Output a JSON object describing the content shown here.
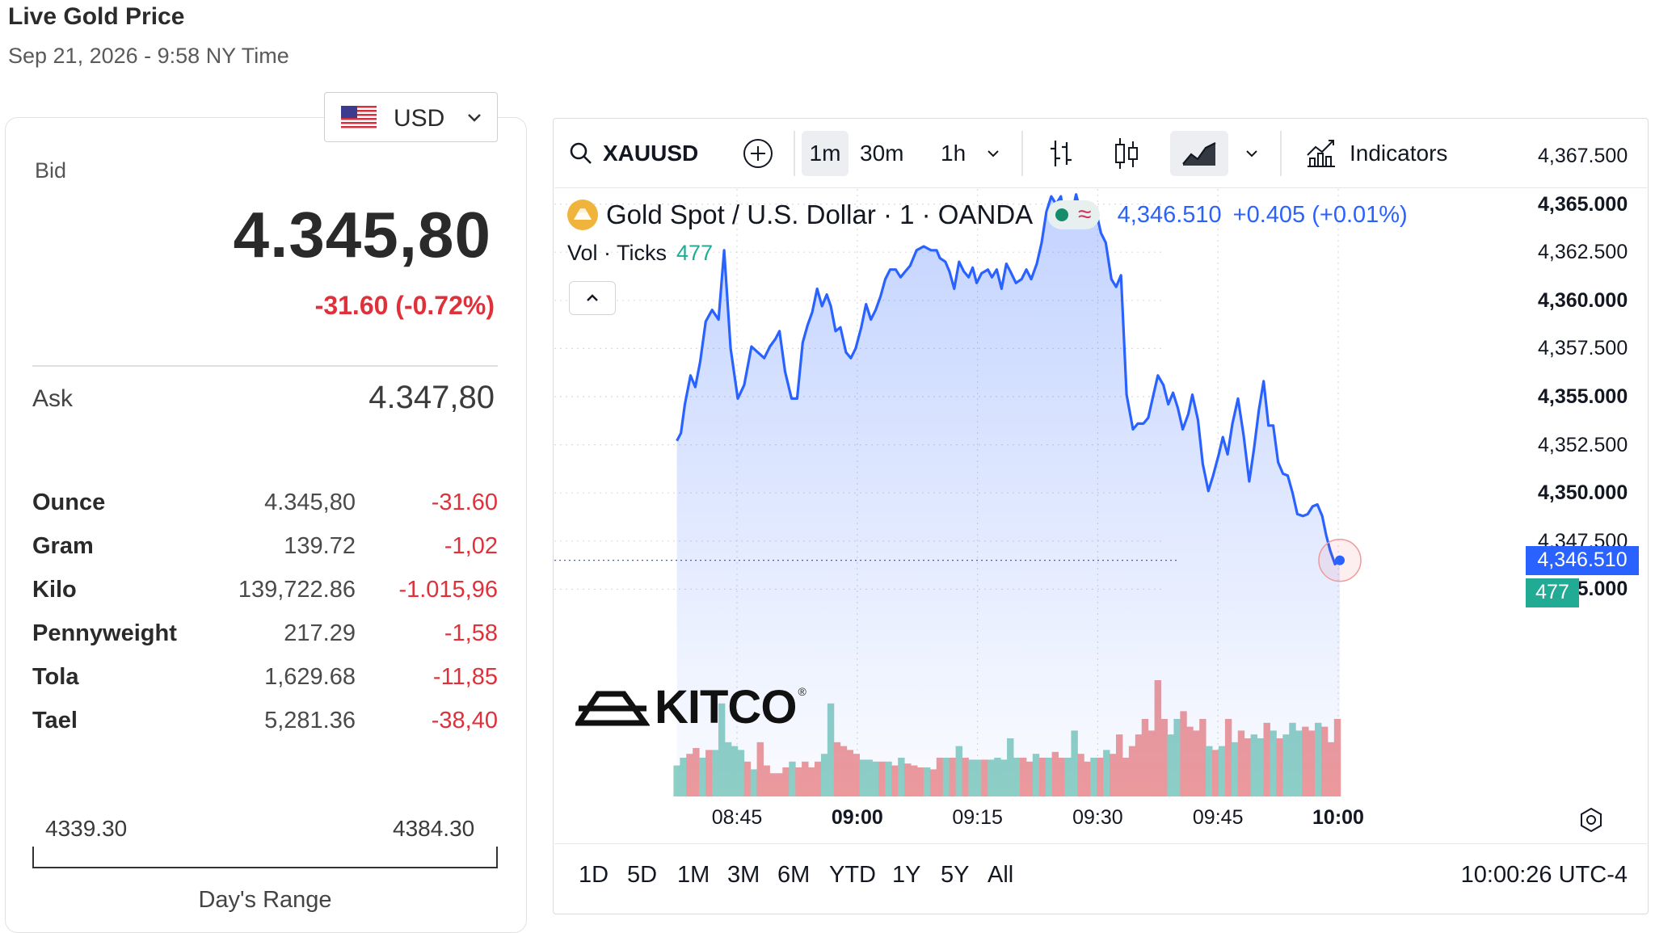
{
  "header": {
    "title": "Live Gold Price",
    "subtitle": "Sep 21, 2026 - 9:58 NY Time"
  },
  "currency": {
    "selected": "USD",
    "flag_icon": "us-flag-icon"
  },
  "quote": {
    "bid_label": "Bid",
    "bid_value": "4.345,80",
    "bid_change": "-31.60 (-0.72%)",
    "ask_label": "Ask",
    "ask_value": "4.347,80"
  },
  "weights": [
    {
      "unit": "Ounce",
      "price": "4.345,80",
      "change": "-31.60"
    },
    {
      "unit": "Gram",
      "price": "139.72",
      "change": "-1,02"
    },
    {
      "unit": "Kilo",
      "price": "139,722.86",
      "change": "-1.015,96"
    },
    {
      "unit": "Pennyweight",
      "price": "217.29",
      "change": "-1,58"
    },
    {
      "unit": "Tola",
      "price": "1,629.68",
      "change": "-11,85"
    },
    {
      "unit": "Tael",
      "price": "5,281.36",
      "change": "-38,40"
    }
  ],
  "day_range": {
    "low": "4339.30",
    "high": "4384.30",
    "label": "Day's Range"
  },
  "toolbar": {
    "symbol": "XAUUSD",
    "intervals": [
      "1m",
      "30m",
      "1h"
    ],
    "active_interval": "1m",
    "indicators_label": "Indicators"
  },
  "legend": {
    "name": "Gold Spot / U.S. Dollar · 1 · OANDA",
    "price": "4,346.510",
    "change": "+0.405 (+0.01%)",
    "vol_label": "Vol · Ticks",
    "vol_value": "477"
  },
  "brand": {
    "name": "KITCO",
    "registered": "®"
  },
  "ranges": [
    "1D",
    "5D",
    "1M",
    "3M",
    "6M",
    "YTD",
    "1Y",
    "5Y",
    "All"
  ],
  "clock": "10:00:26 UTC-4",
  "colors": {
    "line": "#2962ff",
    "down": "#e0313b",
    "up_volume": "#8fd0c5",
    "down_volume": "#ef9a9a",
    "vol_tag": "#22ab94",
    "price_tag": "#2962ff"
  },
  "chart_data": {
    "type": "area",
    "y_axis_labels": [
      "4,367.500",
      "4,365.000",
      "4,362.500",
      "4,360.000",
      "4,357.500",
      "4,355.000",
      "4,352.500",
      "4,350.000",
      "4,347.500",
      "4,345.000"
    ],
    "bold_y_labels": [
      "4,365.000",
      "4,360.000",
      "4,355.000",
      "4,350.000",
      "4,345.000"
    ],
    "ylim": [
      4345.0,
      4367.5
    ],
    "x_axis_labels": [
      {
        "label": "08:45",
        "minute": 0,
        "bold": false
      },
      {
        "label": "09:00",
        "minute": 15,
        "bold": true
      },
      {
        "label": "09:15",
        "minute": 30,
        "bold": false
      },
      {
        "label": "09:30",
        "minute": 45,
        "bold": false
      },
      {
        "label": "09:45",
        "minute": 60,
        "bold": false
      },
      {
        "label": "10:00",
        "minute": 75,
        "bold": true
      }
    ],
    "x_start_minute": -7.5,
    "current_price_tag": "4,346.510",
    "current_volume_tag": "477",
    "series": [
      {
        "name": "Gold Spot / U.S. Dollar",
        "points": [
          [
            -7.5,
            4352.7
          ],
          [
            -7,
            4353.1
          ],
          [
            -6.5,
            4354.6
          ],
          [
            -5.8,
            4356.1
          ],
          [
            -5.2,
            4355.5
          ],
          [
            -4.6,
            4356.8
          ],
          [
            -3.9,
            4358.9
          ],
          [
            -3.1,
            4359.5
          ],
          [
            -2.3,
            4359.0
          ],
          [
            -1.6,
            4362.6
          ],
          [
            -0.8,
            4357.5
          ],
          [
            0.1,
            4354.9
          ],
          [
            0.9,
            4355.6
          ],
          [
            1.8,
            4357.6
          ],
          [
            2.6,
            4357.3
          ],
          [
            3.4,
            4357.0
          ],
          [
            4.1,
            4357.6
          ],
          [
            4.8,
            4358.0
          ],
          [
            5.3,
            4358.4
          ],
          [
            6.0,
            4356.3
          ],
          [
            6.8,
            4354.9
          ],
          [
            7.5,
            4354.9
          ],
          [
            8.2,
            4357.8
          ],
          [
            8.8,
            4358.7
          ],
          [
            9.4,
            4359.4
          ],
          [
            10.0,
            4360.6
          ],
          [
            10.6,
            4359.7
          ],
          [
            11.2,
            4360.3
          ],
          [
            11.7,
            4359.7
          ],
          [
            12.3,
            4358.4
          ],
          [
            12.9,
            4358.6
          ],
          [
            13.6,
            4357.3
          ],
          [
            14.2,
            4357.0
          ],
          [
            14.8,
            4357.5
          ],
          [
            15.5,
            4358.6
          ],
          [
            16.1,
            4359.8
          ],
          [
            16.7,
            4359.0
          ],
          [
            17.3,
            4359.5
          ],
          [
            17.9,
            4360.2
          ],
          [
            18.5,
            4361.1
          ],
          [
            19.1,
            4361.6
          ],
          [
            19.8,
            4361.6
          ],
          [
            20.4,
            4361.2
          ],
          [
            21.0,
            4361.5
          ],
          [
            21.6,
            4361.8
          ],
          [
            22.4,
            4362.6
          ],
          [
            23.3,
            4362.8
          ],
          [
            24.2,
            4362.6
          ],
          [
            24.9,
            4362.6
          ],
          [
            25.3,
            4362.2
          ],
          [
            26.0,
            4362.0
          ],
          [
            26.5,
            4361.5
          ],
          [
            27.1,
            4360.6
          ],
          [
            27.7,
            4362.0
          ],
          [
            28.3,
            4361.5
          ],
          [
            28.9,
            4361.2
          ],
          [
            29.4,
            4361.7
          ],
          [
            29.9,
            4360.9
          ],
          [
            30.5,
            4361.4
          ],
          [
            31.3,
            4361.6
          ],
          [
            31.8,
            4361.2
          ],
          [
            32.4,
            4361.6
          ],
          [
            33.0,
            4360.6
          ],
          [
            33.6,
            4361.9
          ],
          [
            34.1,
            4361.5
          ],
          [
            34.8,
            4360.9
          ],
          [
            35.5,
            4361.1
          ],
          [
            36.1,
            4361.6
          ],
          [
            36.7,
            4361.1
          ],
          [
            37.4,
            4361.9
          ],
          [
            38.0,
            4363.0
          ],
          [
            38.6,
            4364.6
          ],
          [
            39.2,
            4365.4
          ],
          [
            39.8,
            4365.0
          ],
          [
            40.4,
            4365.4
          ],
          [
            40.9,
            4364.0
          ],
          [
            41.6,
            4364.1
          ],
          [
            42.3,
            4365.5
          ],
          [
            42.9,
            4364.5
          ],
          [
            43.5,
            4364.7
          ],
          [
            44.2,
            4363.9
          ],
          [
            44.8,
            4364.6
          ],
          [
            45.4,
            4363.5
          ],
          [
            46.0,
            4363.0
          ],
          [
            46.7,
            4361.1
          ],
          [
            47.3,
            4360.7
          ],
          [
            47.9,
            4361.3
          ],
          [
            48.6,
            4355.1
          ],
          [
            49.4,
            4353.3
          ],
          [
            50.0,
            4353.6
          ],
          [
            50.7,
            4353.6
          ],
          [
            51.3,
            4353.9
          ],
          [
            51.9,
            4355.0
          ],
          [
            52.5,
            4356.1
          ],
          [
            53.2,
            4355.6
          ],
          [
            53.8,
            4354.6
          ],
          [
            54.4,
            4355.2
          ],
          [
            55.0,
            4354.4
          ],
          [
            55.6,
            4353.3
          ],
          [
            56.3,
            4354.1
          ],
          [
            56.8,
            4355.1
          ],
          [
            57.5,
            4353.8
          ],
          [
            58.1,
            4351.5
          ],
          [
            58.8,
            4350.1
          ],
          [
            59.4,
            4350.9
          ],
          [
            60.1,
            4352.0
          ],
          [
            60.6,
            4352.9
          ],
          [
            61.2,
            4352.0
          ],
          [
            61.8,
            4353.6
          ],
          [
            62.5,
            4354.9
          ],
          [
            63.2,
            4353.0
          ],
          [
            63.9,
            4350.6
          ],
          [
            64.5,
            4352.3
          ],
          [
            65.1,
            4354.3
          ],
          [
            65.7,
            4355.8
          ],
          [
            66.3,
            4353.5
          ],
          [
            66.9,
            4353.5
          ],
          [
            67.5,
            4351.6
          ],
          [
            68.1,
            4351.0
          ],
          [
            68.7,
            4350.9
          ],
          [
            69.3,
            4350.0
          ],
          [
            69.9,
            4348.9
          ],
          [
            70.6,
            4348.8
          ],
          [
            71.2,
            4348.9
          ],
          [
            71.8,
            4349.3
          ],
          [
            72.4,
            4349.4
          ],
          [
            73.0,
            4348.8
          ],
          [
            73.5,
            4347.8
          ],
          [
            74.0,
            4347.0
          ],
          [
            74.6,
            4346.3
          ],
          [
            75.2,
            4346.5
          ]
        ]
      }
    ],
    "volume": {
      "name": "Vol",
      "bars": [
        [
          -7.5,
          16,
          "up"
        ],
        [
          -6.7,
          20,
          "up"
        ],
        [
          -5.9,
          22,
          "down"
        ],
        [
          -5.1,
          25,
          "down"
        ],
        [
          -4.3,
          20,
          "up"
        ],
        [
          -3.5,
          24,
          "down"
        ],
        [
          -2.7,
          24,
          "up"
        ],
        [
          -1.9,
          48,
          "up"
        ],
        [
          -1.1,
          28,
          "up"
        ],
        [
          -0.3,
          26,
          "up"
        ],
        [
          0.5,
          24,
          "up"
        ],
        [
          1.3,
          18,
          "down"
        ],
        [
          2.1,
          14,
          "up"
        ],
        [
          2.9,
          28,
          "down"
        ],
        [
          3.7,
          16,
          "down"
        ],
        [
          4.5,
          12,
          "down"
        ],
        [
          5.3,
          12,
          "down"
        ],
        [
          6.1,
          15,
          "down"
        ],
        [
          6.9,
          18,
          "up"
        ],
        [
          7.7,
          15,
          "down"
        ],
        [
          8.5,
          18,
          "down"
        ],
        [
          9.3,
          15,
          "down"
        ],
        [
          10.1,
          18,
          "down"
        ],
        [
          10.9,
          22,
          "up"
        ],
        [
          11.7,
          48,
          "up"
        ],
        [
          12.5,
          28,
          "down"
        ],
        [
          13.3,
          26,
          "down"
        ],
        [
          14.1,
          24,
          "down"
        ],
        [
          14.9,
          22,
          "down"
        ],
        [
          15.7,
          19,
          "up"
        ],
        [
          16.5,
          19,
          "up"
        ],
        [
          17.3,
          18,
          "up"
        ],
        [
          18.1,
          18,
          "down"
        ],
        [
          18.9,
          18,
          "up"
        ],
        [
          19.7,
          16,
          "down"
        ],
        [
          20.5,
          20,
          "up"
        ],
        [
          21.3,
          17,
          "down"
        ],
        [
          22.1,
          16,
          "down"
        ],
        [
          22.9,
          15,
          "down"
        ],
        [
          23.7,
          15,
          "up"
        ],
        [
          24.5,
          14,
          "down"
        ],
        [
          25.3,
          20,
          "down"
        ],
        [
          26.1,
          20,
          "up"
        ],
        [
          26.9,
          20,
          "down"
        ],
        [
          27.7,
          26,
          "up"
        ],
        [
          28.5,
          20,
          "down"
        ],
        [
          29.3,
          19,
          "up"
        ],
        [
          30.1,
          19,
          "up"
        ],
        [
          30.9,
          19,
          "down"
        ],
        [
          31.7,
          19,
          "up"
        ],
        [
          32.5,
          20,
          "up"
        ],
        [
          33.3,
          19,
          "up"
        ],
        [
          34.1,
          30,
          "up"
        ],
        [
          34.9,
          20,
          "up"
        ],
        [
          35.7,
          20,
          "down"
        ],
        [
          36.5,
          18,
          "down"
        ],
        [
          37.3,
          22,
          "up"
        ],
        [
          38.1,
          20,
          "down"
        ],
        [
          38.9,
          20,
          "up"
        ],
        [
          39.7,
          23,
          "down"
        ],
        [
          40.5,
          20,
          "down"
        ],
        [
          41.3,
          20,
          "up"
        ],
        [
          42.1,
          34,
          "up"
        ],
        [
          42.9,
          22,
          "down"
        ],
        [
          43.7,
          18,
          "down"
        ],
        [
          44.5,
          20,
          "up"
        ],
        [
          45.3,
          20,
          "down"
        ],
        [
          46.1,
          24,
          "up"
        ],
        [
          46.9,
          22,
          "down"
        ],
        [
          47.7,
          32,
          "down"
        ],
        [
          48.5,
          20,
          "down"
        ],
        [
          49.3,
          26,
          "down"
        ],
        [
          50.1,
          32,
          "down"
        ],
        [
          50.9,
          40,
          "down"
        ],
        [
          51.7,
          34,
          "down"
        ],
        [
          52.5,
          60,
          "down"
        ],
        [
          53.3,
          40,
          "down"
        ],
        [
          54.1,
          32,
          "up"
        ],
        [
          54.9,
          40,
          "up"
        ],
        [
          55.7,
          44,
          "down"
        ],
        [
          56.5,
          36,
          "down"
        ],
        [
          57.3,
          34,
          "down"
        ],
        [
          58.1,
          40,
          "down"
        ],
        [
          58.9,
          26,
          "up"
        ],
        [
          59.7,
          24,
          "down"
        ],
        [
          60.5,
          26,
          "up"
        ],
        [
          61.3,
          40,
          "down"
        ],
        [
          62.1,
          28,
          "up"
        ],
        [
          62.9,
          34,
          "down"
        ],
        [
          63.7,
          30,
          "down"
        ],
        [
          64.5,
          32,
          "up"
        ],
        [
          65.3,
          30,
          "up"
        ],
        [
          66.1,
          38,
          "down"
        ],
        [
          66.9,
          34,
          "up"
        ],
        [
          67.7,
          30,
          "down"
        ],
        [
          68.5,
          32,
          "up"
        ],
        [
          69.3,
          38,
          "up"
        ],
        [
          70.1,
          34,
          "up"
        ],
        [
          70.9,
          36,
          "down"
        ],
        [
          71.7,
          34,
          "down"
        ],
        [
          72.5,
          38,
          "up"
        ],
        [
          73.3,
          36,
          "down"
        ],
        [
          74.1,
          28,
          "down"
        ],
        [
          74.9,
          40,
          "down"
        ]
      ]
    }
  }
}
